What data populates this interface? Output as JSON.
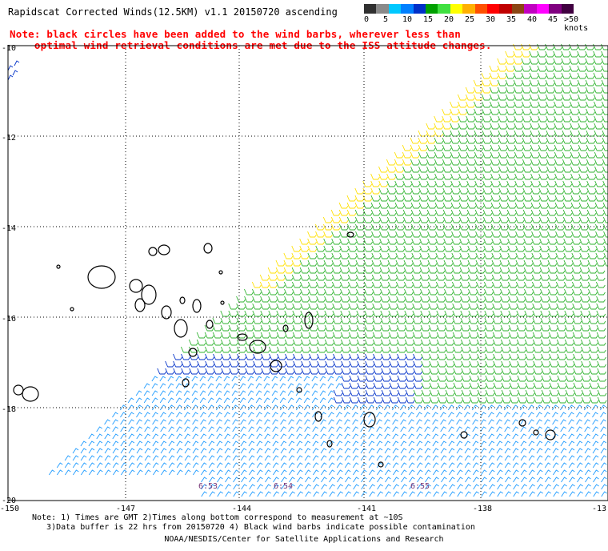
{
  "title": "Rapidscat Corrected Winds(12.5KM) v1.1 20150720 ascending",
  "note_red": [
    "Note: black circles have been added to the wind barbs, wherever less than",
    "    optimal wind retrieval conditions are met due to the ISS attitude changes."
  ],
  "legend": {
    "labels": [
      "0",
      "5",
      "10",
      "15",
      "20",
      "25",
      "30",
      "35",
      "40",
      "45",
      ">50 knots"
    ],
    "colors": [
      "#303030",
      "#8a8a8a",
      "#00c8ff",
      "#0080ff",
      "#0030c8",
      "#00a000",
      "#40e040",
      "#ffff00",
      "#ffb000",
      "#ff5000",
      "#ff0000",
      "#c00000",
      "#8b4513",
      "#c000c0",
      "#ff00ff",
      "#800080",
      "#400040"
    ]
  },
  "map": {
    "lat_labels": [
      "-10",
      "-12",
      "-14",
      "-16",
      "-18",
      "-20"
    ],
    "lon_labels": [
      "-150",
      "-147",
      "-144",
      "-141",
      "-138",
      "-13"
    ],
    "time_labels": [
      "6:53",
      "6:54",
      "6:55"
    ]
  },
  "footnotes": [
    "Note: 1) Times are GMT 2)Times along bottom correspond to measurement at ~10S",
    "   3)Data buffer is 22 hrs from 20150720 4) Black wind barbs indicate possible contamination"
  ],
  "credit": "NOAA/NESDIS/Center for Satellite Applications and Research"
}
